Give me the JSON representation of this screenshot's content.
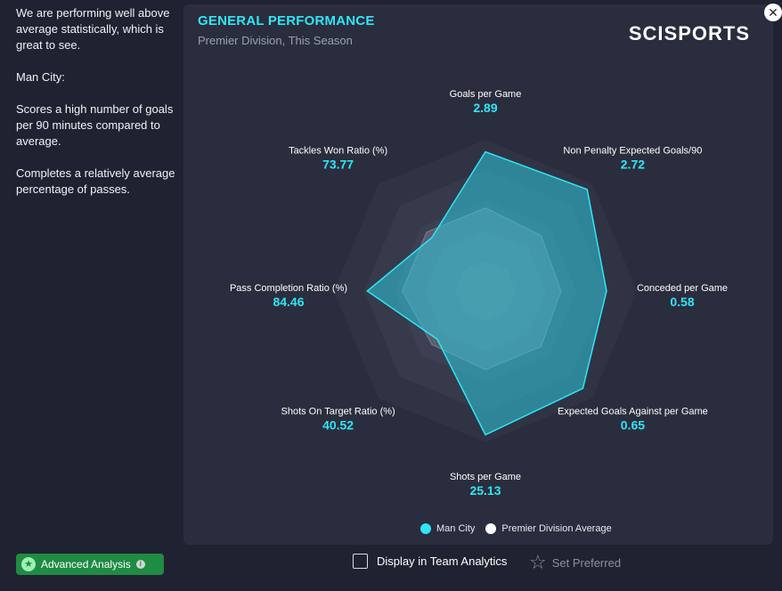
{
  "left_panel": {
    "paragraphs": [
      "We are performing well above average statistically, which is great to see.",
      "Man City:",
      "Scores a high number of goals per 90 minutes compared to average.",
      "Completes a relatively average percentage of passes."
    ]
  },
  "panel": {
    "title": "GENERAL PERFORMANCE",
    "subtitle": "Premier Division, This Season",
    "brand": "SCISPORTS"
  },
  "close_icon": "close-icon",
  "radar": {
    "metrics": [
      {
        "label": "Goals per Game",
        "value": "2.89",
        "team": 0.92,
        "avg": 0.55
      },
      {
        "label": "Non Penalty Expected Goals/90",
        "value": "2.72",
        "team": 0.95,
        "avg": 0.52
      },
      {
        "label": "Conceded per Game",
        "value": "0.58",
        "team": 0.8,
        "avg": 0.5
      },
      {
        "label": "Expected Goals Against per Game",
        "value": "0.65",
        "team": 0.91,
        "avg": 0.52
      },
      {
        "label": "Shots per Game",
        "value": "25.13",
        "team": 0.95,
        "avg": 0.52
      },
      {
        "label": "Shots On Target Ratio (%)",
        "value": "40.52",
        "team": 0.45,
        "avg": 0.5
      },
      {
        "label": "Pass Completion Ratio (%)",
        "value": "84.46",
        "team": 0.78,
        "avg": 0.55
      },
      {
        "label": "Tackles Won Ratio (%)",
        "value": "73.77",
        "team": 0.5,
        "avg": 0.55
      }
    ],
    "team_color": "#2ee6f7",
    "avg_color": "#ffffff"
  },
  "legend": {
    "team_label": "Man City",
    "avg_label": "Premier Division Average",
    "team_color": "#2ee6f7",
    "avg_color": "#ffffff"
  },
  "footer": {
    "advanced_analysis_label": "Advanced Analysis",
    "display_in_team_analytics_label": "Display in Team Analytics",
    "display_in_team_analytics_checked": false,
    "set_preferred_label": "Set Preferred"
  }
}
